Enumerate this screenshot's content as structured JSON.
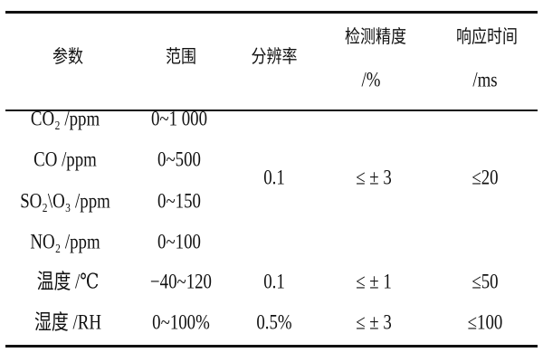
{
  "table": {
    "headers": [
      {
        "line1": "参数",
        "line2": ""
      },
      {
        "line1": "范围",
        "line2": ""
      },
      {
        "line1": "分辨率",
        "line2": ""
      },
      {
        "line1": "检测精度",
        "line2": "/%"
      },
      {
        "line1": "响应时间",
        "line2": "/ms"
      }
    ],
    "rows": [
      {
        "param": "CO₂ /ppm",
        "range": "0~1 000"
      },
      {
        "param": "CO /ppm",
        "range": "0~500"
      },
      {
        "param": "SO₂\\O₃ /ppm",
        "range": "0~150"
      },
      {
        "param": "NO₂ /ppm",
        "range": "0~100"
      },
      {
        "param": "温度  /℃",
        "range": "−40~120",
        "resolution": "0.1",
        "accuracy": "≤ ± 1",
        "response": "≤50"
      },
      {
        "param": "湿度  /RH",
        "range": "0~100%",
        "resolution": "0.5%",
        "accuracy": "≤ ± 3",
        "response": "≤100"
      }
    ],
    "gas_group": {
      "resolution": "0.1",
      "accuracy": "≤ ± 3",
      "response": "≤20"
    }
  }
}
